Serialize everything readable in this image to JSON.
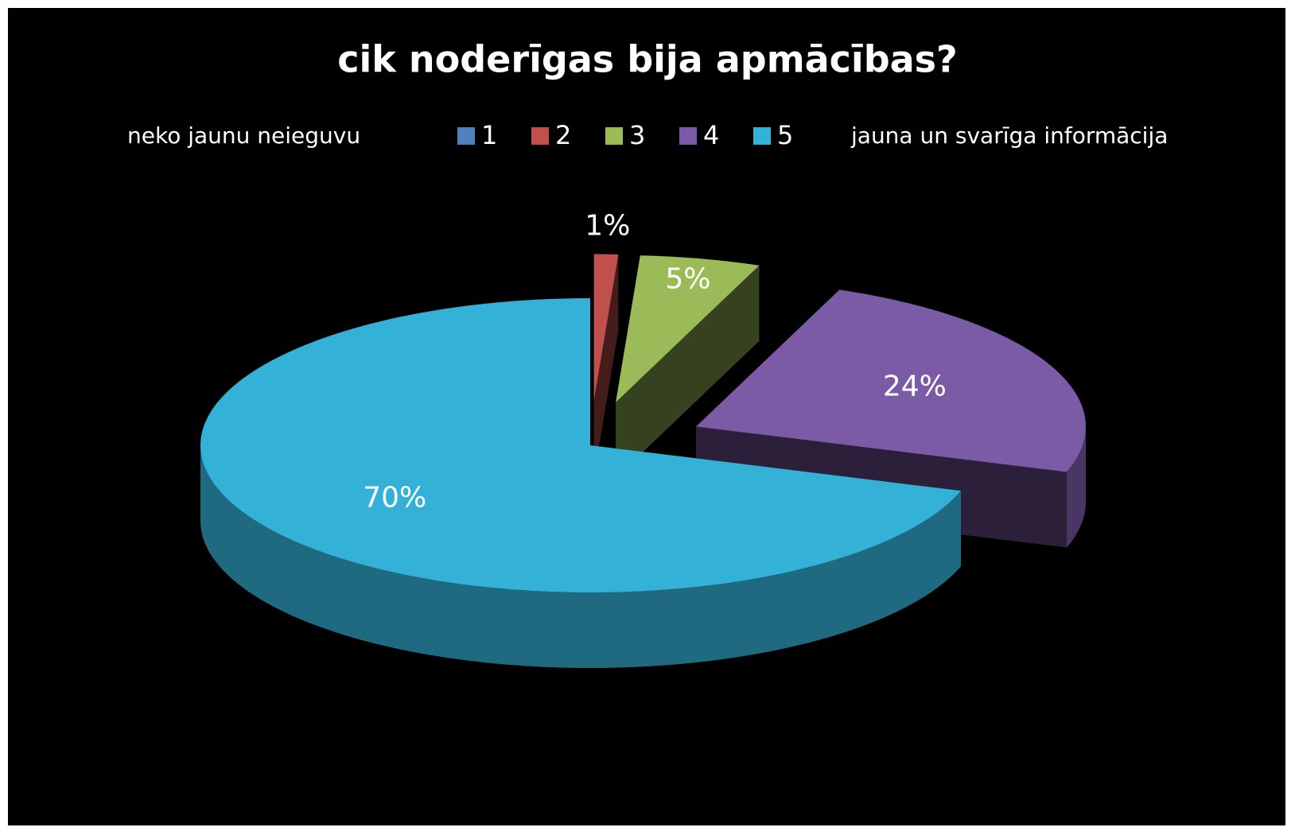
{
  "chart_data": {
    "type": "pie3d",
    "title": "cik noderīgas bija apmācības?",
    "annotations": [
      "neko jaunu neieguvu",
      "jauna un svarīga informācija"
    ],
    "categories": [
      "1",
      "2",
      "3",
      "4",
      "5"
    ],
    "values": [
      0,
      1,
      5,
      24,
      70
    ],
    "value_labels": [
      null,
      "1%",
      "5%",
      "24%",
      "70%"
    ],
    "colors": [
      "#4f81bd",
      "#c0504d",
      "#9bbb59",
      "#7b5aa6",
      "#33b1d6"
    ],
    "legend": "top"
  }
}
